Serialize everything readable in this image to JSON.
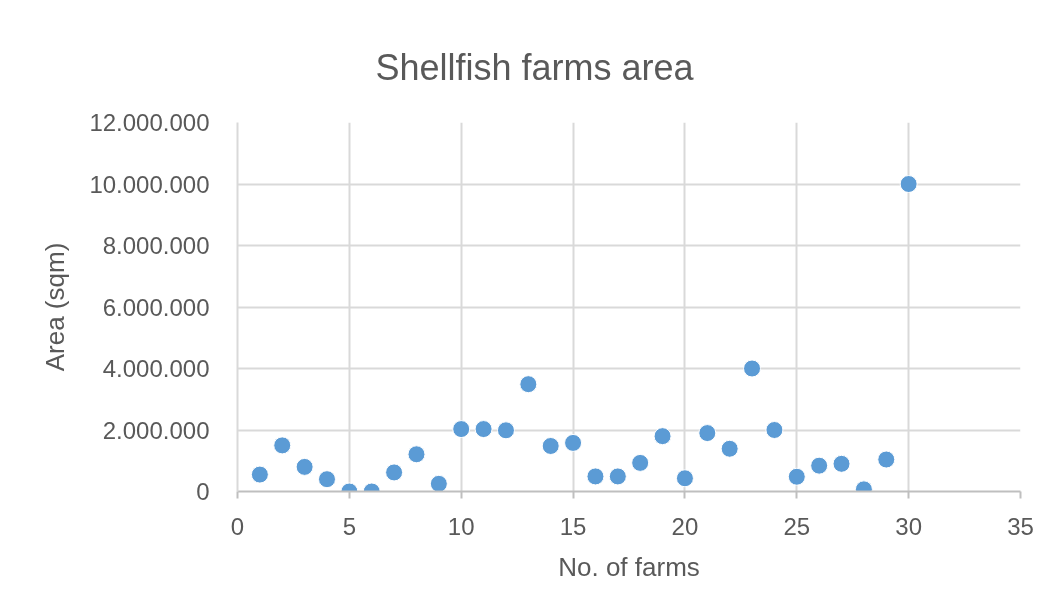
{
  "chart_data": {
    "type": "scatter",
    "title": "Shellfish farms area",
    "xlabel": "No. of farms",
    "ylabel": "Area (sqm)",
    "x": [
      1,
      2,
      3,
      4,
      5,
      6,
      7,
      8,
      9,
      10,
      11,
      12,
      13,
      14,
      15,
      16,
      17,
      18,
      19,
      20,
      21,
      22,
      23,
      24,
      25,
      26,
      27,
      28,
      29,
      30
    ],
    "series": [
      {
        "color": "#5b9bd5",
        "values": [
          550000,
          1500000,
          800000,
          400000,
          0,
          0,
          620000,
          1210000,
          250000,
          2030000,
          2030000,
          1990000,
          3490000,
          1480000,
          1580000,
          490000,
          490000,
          930000,
          1800000,
          430000,
          1900000,
          1390000,
          4000000,
          2000000,
          480000,
          840000,
          900000,
          70000,
          1040000,
          10000000
        ]
      }
    ],
    "xlim": [
      0,
      35
    ],
    "ylim": [
      0,
      12000000
    ],
    "xticks": [
      0,
      5,
      10,
      15,
      20,
      25,
      30,
      35
    ],
    "yticks": [
      0,
      {
        "value": 2000000,
        "label": "2.000.000"
      },
      {
        "value": 4000000,
        "label": "4.000.000"
      },
      {
        "value": 6000000,
        "label": "6.000.000"
      },
      {
        "value": 8000000,
        "label": "8.000.000"
      },
      {
        "value": 10000000,
        "label": "10.000.000"
      },
      {
        "value": 12000000,
        "label": "12.000.000"
      }
    ],
    "grid": true,
    "marker": "circle"
  }
}
